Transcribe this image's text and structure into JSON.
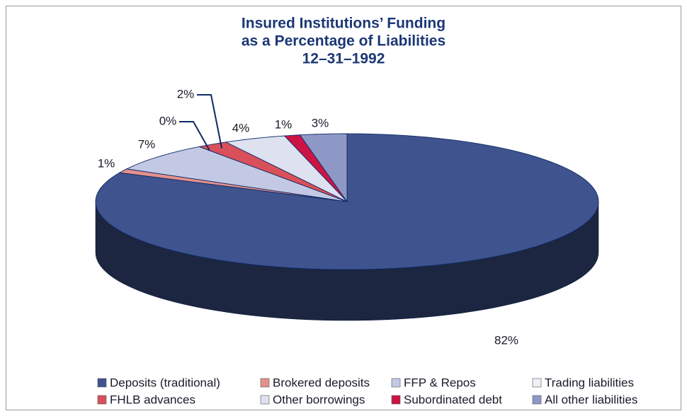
{
  "chart_data": {
    "type": "pie3d",
    "title": [
      "Insured Institutions’ Funding",
      "as a Percentage of Liabilities",
      "12–31–1992"
    ],
    "categories": [
      "Deposits (traditional)",
      "Brokered deposits",
      "FFP & Repos",
      "Trading liabilities",
      "FHLB advances",
      "Other borrowings",
      "Subordinated debt",
      "All other liabilities"
    ],
    "values": [
      82,
      1,
      7,
      0,
      2,
      4,
      1,
      3
    ],
    "value_labels": [
      "82%",
      "1%",
      "7%",
      "0%",
      "2%",
      "4%",
      "1%",
      "3%"
    ],
    "colors": [
      "#3f548e",
      "#e4908c",
      "#c3c9e4",
      "#eef0f8",
      "#d9505a",
      "#dde1f0",
      "#cc1444",
      "#8e98c7"
    ],
    "legend": "bottom"
  }
}
